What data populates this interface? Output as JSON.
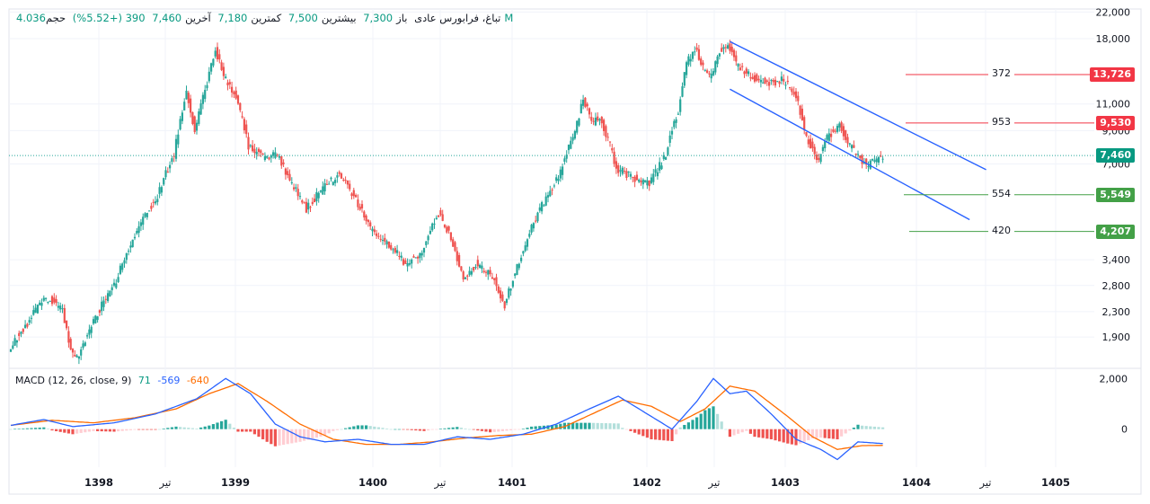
{
  "header": {
    "symbol": "تباغ، فرابورس عادی",
    "open_label": "باز",
    "open_value": "7,300",
    "high_label": "بیشترین",
    "high_value": "7,500",
    "low_label": "کمترین",
    "low_value": "7,180",
    "close_label": "آخرین",
    "close_value": "7,460",
    "change": "390 (+5.52%)",
    "volume_label": "حجم",
    "volume_value": "4.036M"
  },
  "macd_legend": {
    "title": "MACD (12, 26, close, 9)",
    "hist_value": "71",
    "macd_value": "-569",
    "signal_value": "-640"
  },
  "colors": {
    "up": "#26a69a",
    "down": "#ef5350",
    "macd": "#2962ff",
    "signal": "#ff6d00",
    "channel": "#2962ff",
    "res": "#f23645",
    "sup": "#43a047",
    "grid": "#f0f3fa"
  },
  "chart_data": {
    "type": "candlestick",
    "price_axis": {
      "scale": "log",
      "ticks": [
        22000,
        18000,
        11000,
        9000,
        7000,
        3400,
        2800,
        2300,
        1900
      ],
      "range": [
        1500,
        22500
      ]
    },
    "time_axis": [
      "1398",
      "تیر",
      "1399",
      "1400",
      "تیر",
      "1401",
      "1402",
      "تیر",
      "1403",
      "1404",
      "تیر",
      "1405"
    ],
    "price_path": [
      [
        0,
        1750
      ],
      [
        4,
        2050
      ],
      [
        8,
        2500
      ],
      [
        10,
        2550
      ],
      [
        13,
        2300
      ],
      [
        15,
        1700
      ],
      [
        17,
        1650
      ],
      [
        21,
        2200
      ],
      [
        26,
        2900
      ],
      [
        31,
        4200
      ],
      [
        36,
        5500
      ],
      [
        40,
        7500
      ],
      [
        43,
        12000
      ],
      [
        45,
        9000
      ],
      [
        48,
        13000
      ],
      [
        50,
        16500
      ],
      [
        52,
        13500
      ],
      [
        55,
        11500
      ],
      [
        58,
        8000
      ],
      [
        62,
        7300
      ],
      [
        65,
        7500
      ],
      [
        68,
        6200
      ],
      [
        72,
        5000
      ],
      [
        76,
        5800
      ],
      [
        80,
        6500
      ],
      [
        84,
        5300
      ],
      [
        88,
        4200
      ],
      [
        92,
        3800
      ],
      [
        96,
        3300
      ],
      [
        100,
        3600
      ],
      [
        104,
        4800
      ],
      [
        107,
        4000
      ],
      [
        110,
        2900
      ],
      [
        113,
        3300
      ],
      [
        117,
        3000
      ],
      [
        120,
        2400
      ],
      [
        124,
        3500
      ],
      [
        128,
        4800
      ],
      [
        133,
        6300
      ],
      [
        137,
        8800
      ],
      [
        139,
        11500
      ],
      [
        141,
        9500
      ],
      [
        143,
        10000
      ],
      [
        147,
        6800
      ],
      [
        151,
        6300
      ],
      [
        155,
        6000
      ],
      [
        159,
        7500
      ],
      [
        162,
        10500
      ],
      [
        164,
        15000
      ],
      [
        166,
        16800
      ],
      [
        168,
        14500
      ],
      [
        170,
        13500
      ],
      [
        172,
        16500
      ],
      [
        174,
        17200
      ],
      [
        176,
        15000
      ],
      [
        178,
        14000
      ],
      [
        181,
        13300
      ],
      [
        184,
        12800
      ],
      [
        187,
        13200
      ],
      [
        189,
        12500
      ],
      [
        191,
        11000
      ],
      [
        193,
        8500
      ],
      [
        196,
        7200
      ],
      [
        198,
        8500
      ],
      [
        201,
        9500
      ],
      [
        203,
        8200
      ],
      [
        206,
        7300
      ],
      [
        208,
        6900
      ],
      [
        211,
        7460
      ]
    ],
    "macd_axis": {
      "ticks": [
        2000,
        0
      ],
      "range": [
        -1500,
        2400
      ]
    },
    "macd_path": [
      [
        0,
        150
      ],
      [
        8,
        380
      ],
      [
        15,
        100
      ],
      [
        25,
        250
      ],
      [
        35,
        600
      ],
      [
        45,
        1200
      ],
      [
        52,
        2000
      ],
      [
        58,
        1400
      ],
      [
        64,
        200
      ],
      [
        70,
        -300
      ],
      [
        76,
        -500
      ],
      [
        84,
        -400
      ],
      [
        92,
        -600
      ],
      [
        100,
        -600
      ],
      [
        108,
        -300
      ],
      [
        116,
        -400
      ],
      [
        124,
        -200
      ],
      [
        132,
        200
      ],
      [
        140,
        800
      ],
      [
        147,
        1300
      ],
      [
        153,
        700
      ],
      [
        160,
        0
      ],
      [
        166,
        1100
      ],
      [
        170,
        2000
      ],
      [
        174,
        1400
      ],
      [
        178,
        1500
      ],
      [
        184,
        600
      ],
      [
        190,
        -400
      ],
      [
        196,
        -800
      ],
      [
        200,
        -1200
      ],
      [
        205,
        -500
      ],
      [
        211,
        -569
      ]
    ],
    "signal_path": [
      [
        0,
        150
      ],
      [
        10,
        350
      ],
      [
        20,
        250
      ],
      [
        30,
        450
      ],
      [
        40,
        800
      ],
      [
        48,
        1400
      ],
      [
        55,
        1800
      ],
      [
        62,
        1100
      ],
      [
        70,
        200
      ],
      [
        78,
        -400
      ],
      [
        86,
        -600
      ],
      [
        94,
        -600
      ],
      [
        102,
        -500
      ],
      [
        110,
        -350
      ],
      [
        118,
        -250
      ],
      [
        126,
        -200
      ],
      [
        134,
        100
      ],
      [
        142,
        700
      ],
      [
        148,
        1150
      ],
      [
        155,
        900
      ],
      [
        162,
        300
      ],
      [
        168,
        800
      ],
      [
        174,
        1700
      ],
      [
        180,
        1500
      ],
      [
        188,
        500
      ],
      [
        194,
        -300
      ],
      [
        200,
        -800
      ],
      [
        206,
        -650
      ],
      [
        211,
        -640
      ]
    ],
    "channel_upper": [
      [
        174,
        17600
      ],
      [
        236,
        6700
      ]
    ],
    "channel_lower": [
      [
        174,
        12300
      ],
      [
        232,
        4600
      ]
    ],
    "levels": [
      {
        "label": "372",
        "price": "13,726",
        "value": 13726,
        "kind": "res"
      },
      {
        "label": "953",
        "price": "9,530",
        "value": 9530,
        "kind": "res"
      },
      {
        "label": "554",
        "price": "5,549",
        "value": 5549,
        "kind": "sup"
      },
      {
        "label": "420",
        "price": "4,207",
        "value": 4207,
        "kind": "sup"
      }
    ],
    "last_price": {
      "label": "7,460",
      "value": 7460
    }
  }
}
